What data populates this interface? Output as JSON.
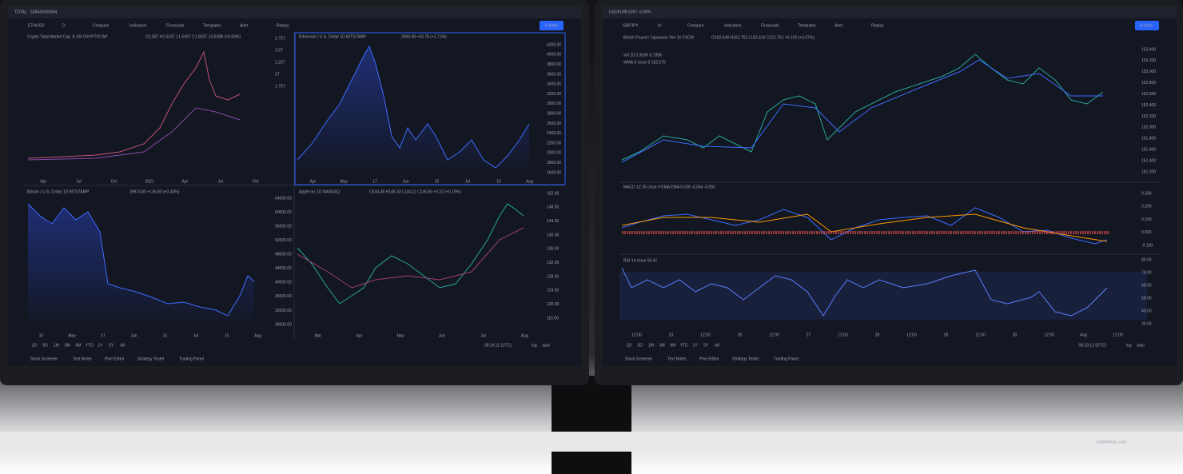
{
  "left_monitor": {
    "tab": {
      "symbol": "TOTAL",
      "price": "538442605994"
    },
    "toolbar": {
      "symbol": "ETHUSD",
      "interval": "D",
      "items": [
        "Compare",
        "Indicators",
        "Financials",
        "Templates",
        "Alert",
        "Replay"
      ],
      "publish": "Publish"
    },
    "charts": [
      {
        "title": "Crypto Total Market Cap, $ 1W CRYPTOCAP",
        "ohlc": "O1.58T H1.616T L1.549T C1.593T 13.028B (+0.83%)",
        "y_labels": [
          "2.75T",
          "2.5T",
          "2.25T",
          "2T",
          "1.75T"
        ],
        "x_labels": [
          "Apr",
          "Jul",
          "Oct",
          "2021",
          "Apr",
          "Jul",
          "Oct"
        ]
      },
      {
        "title": "Ethereum / U.S. Dollar 1D BITSTAMP",
        "ohlc": "2600.08 +43.78 (+1.71%)",
        "y_labels": [
          "4200.00",
          "4000.00",
          "3800.00",
          "3600.00",
          "3400.00",
          "3200.00",
          "3000.00",
          "2800.00",
          "2600.00",
          "2400.00",
          "2200.00",
          "2000.00",
          "1800.00",
          "1600.00"
        ],
        "x_labels": [
          "Apr",
          "May",
          "17",
          "Jun",
          "15",
          "Jul",
          "15",
          "Aug"
        ]
      },
      {
        "title": "Bitcoin / U.S. Dollar 1D BITSTAMP",
        "ohlc": "39974.80 +135.80 (+0.34%)",
        "y_labels": [
          "64000.00",
          "60000.00",
          "56000.00",
          "52000.00",
          "48000.00",
          "44000.00",
          "40000.00",
          "36000.00",
          "32000.00",
          "28000.00"
        ],
        "x_labels": [
          "15",
          "May",
          "17",
          "Jun",
          "15",
          "Jul",
          "15",
          "Aug"
        ]
      },
      {
        "title": "Apple Inc 1D NASDAQ",
        "ohlc": "O144.38 H146.33 L144.11 C145.86 +0.22 (+0.15%)",
        "y_labels": [
          "152.00",
          "148.00",
          "144.00",
          "140.00",
          "136.00",
          "132.00",
          "128.00",
          "124.00",
          "120.00",
          "116.00"
        ],
        "x_labels": [
          "Mar",
          "Apr",
          "May",
          "Jun",
          "Jul",
          "Aug"
        ]
      }
    ],
    "ranges": [
      "1D",
      "5D",
      "1M",
      "3M",
      "6M",
      "YTD",
      "1Y",
      "5Y",
      "All"
    ],
    "clock": "08:14:11 (UTC)",
    "log": "log",
    "auto": "auto",
    "bottom_tabs": [
      "Stock Screener",
      "Text Notes",
      "Pine Editor",
      "Strategy Tester",
      "Trading Panel"
    ]
  },
  "right_monitor": {
    "tab": {
      "symbol": "USDEUR",
      "price": "0.8267 -0.08%"
    },
    "toolbar": {
      "symbol": "GBPJPY",
      "interval": "1h",
      "items": [
        "Compare",
        "Indicators",
        "Financials",
        "Templates",
        "Alert",
        "Replay"
      ],
      "publish": "Publish"
    },
    "chart": {
      "title": "British Pound / Japanese Yen 1h FXCM",
      "ohlc": "O152.649 H152.752 L152.619 C152.752 +0.103 (+0.07%)",
      "volume": "Vol 20 3.353K 6.735K",
      "wma": "WMA 9 close 0 152.575",
      "y_labels": [
        "153.400",
        "153.200",
        "153.000",
        "152.800",
        "152.600",
        "152.400",
        "152.200",
        "152.000",
        "151.800",
        "151.600",
        "151.400",
        "151.200"
      ],
      "macd": "MACD 12 26 close 9 EMA EMA 0.039 -0.054 -0.093",
      "macd_labels": [
        "0.300",
        "0.200",
        "0.100",
        "0.000",
        "-0.100"
      ],
      "rsi": "RSI 14 close 56.41",
      "rsi_labels": [
        "80.00",
        "70.00",
        "60.00",
        "50.00",
        "40.00",
        "30.00"
      ],
      "x_labels": [
        "12:00",
        "23",
        "12:00",
        "26",
        "12:00",
        "27",
        "12:00",
        "28",
        "12:00",
        "29",
        "12:00",
        "30",
        "12:00",
        "Aug",
        "12:00"
      ]
    },
    "ranges": [
      "1D",
      "5D",
      "1M",
      "3M",
      "6M",
      "YTD",
      "1Y",
      "5Y",
      "All"
    ],
    "clock": "08:23:13 (UTC)",
    "log": "log",
    "auto": "auto",
    "bottom_tabs": [
      "Stock Screener",
      "Text Notes",
      "Pine Editor",
      "Strategy Tester",
      "Trading Panel"
    ]
  },
  "watermark": "ColorMango.com"
}
